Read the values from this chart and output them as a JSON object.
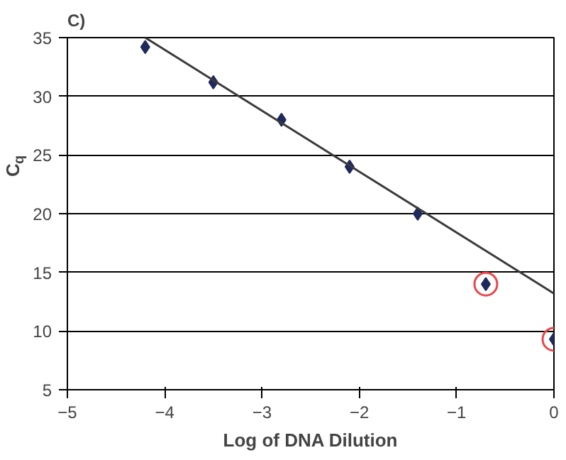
{
  "chart_data": {
    "type": "scatter",
    "xlabel": "Log of DNA Dilution",
    "ylabel": "C$_{q}$",
    "annotations": [
      "C)"
    ],
    "xlim": [
      -5,
      0
    ],
    "ylim": [
      5,
      35
    ],
    "xticks": [
      {
        "value": -5,
        "label": "−5"
      },
      {
        "value": -4,
        "label": "−4"
      },
      {
        "value": -3,
        "label": "−3"
      },
      {
        "value": -2,
        "label": "−2"
      },
      {
        "value": -1,
        "label": "−1"
      },
      0
    ],
    "yticks": [
      5,
      10,
      15,
      20,
      25,
      30,
      35
    ],
    "grid": "y",
    "series": [
      {
        "marker": "diamond",
        "color": "#1f2a5c",
        "x": [
          -4.2,
          -3.5,
          -2.8,
          -2.1,
          -1.4,
          -0.7,
          0
        ],
        "values": [
          34.2,
          31.2,
          28.0,
          24.0,
          20.0,
          14.0,
          9.3
        ]
      },
      {
        "type": "line",
        "marker": "none",
        "color": "#3a3a3a",
        "x": [
          -4.2,
          0
        ],
        "values": [
          35.0,
          13.2
        ]
      },
      {
        "marker": "circle",
        "color": "#e8474c",
        "x": [
          -0.7,
          0
        ],
        "values": [
          14.0,
          9.3
        ]
      }
    ]
  }
}
